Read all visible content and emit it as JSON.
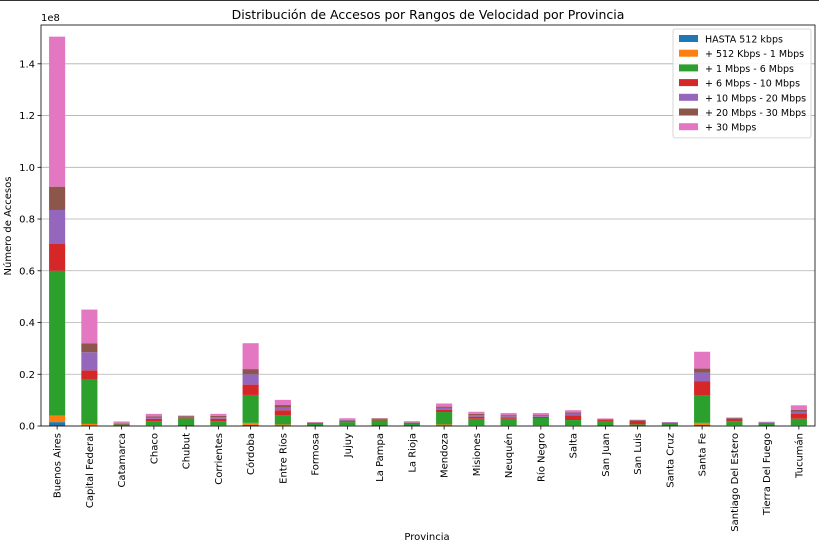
{
  "chart_data": {
    "type": "bar",
    "stacked": true,
    "title": "Distribución de Accesos por Rangos de Velocidad por Provincia",
    "xlabel": "Provincia",
    "ylabel": "Número de Accesos",
    "y_multiplier_label": "1e8",
    "ylim": [
      0,
      1.55
    ],
    "y_ticks": [
      0.0,
      0.2,
      0.4,
      0.6,
      0.8,
      1.0,
      1.2,
      1.4
    ],
    "y_tick_labels": [
      "0.0",
      "0.2",
      "0.4",
      "0.6",
      "0.8",
      "1.0",
      "1.2",
      "1.4"
    ],
    "grid": "horizontal",
    "legend_position": "top-right",
    "categories": [
      "Buenos Aires",
      "Capital Federal",
      "Catamarca",
      "Chaco",
      "Chubut",
      "Corrientes",
      "Córdoba",
      "Entre Ríos",
      "Formosa",
      "Jujuy",
      "La Pampa",
      "La Rioja",
      "Mendoza",
      "Misiones",
      "Neuquén",
      "Río Negro",
      "Salta",
      "San Juan",
      "San Luis",
      "Santa Cruz",
      "Santa Fe",
      "Santiago Del Estero",
      "Tierra Del Fuego",
      "Tucumán"
    ],
    "series": [
      {
        "name": "HASTA 512 kbps",
        "color": "#1f77b4",
        "values": [
          0.015,
          0.003,
          0.0005,
          0.001,
          0.0005,
          0.001,
          0.004,
          0.002,
          0.0005,
          0.001,
          0.0005,
          0.0005,
          0.002,
          0.001,
          0.001,
          0.001,
          0.001,
          0.0005,
          0.0005,
          0.0005,
          0.004,
          0.001,
          0.0005,
          0.001
        ]
      },
      {
        "name": "+ 512 Kbps - 1 Mbps",
        "color": "#ff7f0e",
        "values": [
          0.025,
          0.005,
          0.001,
          0.002,
          0.001,
          0.002,
          0.008,
          0.004,
          0.001,
          0.002,
          0.001,
          0.001,
          0.004,
          0.002,
          0.002,
          0.002,
          0.002,
          0.001,
          0.001,
          0.001,
          0.008,
          0.002,
          0.001,
          0.002
        ]
      },
      {
        "name": "+ 1 Mbps - 6 Mbps",
        "color": "#2ca02c",
        "values": [
          0.56,
          0.172,
          0.005,
          0.015,
          0.028,
          0.015,
          0.108,
          0.035,
          0.008,
          0.012,
          0.02,
          0.008,
          0.048,
          0.025,
          0.025,
          0.028,
          0.02,
          0.018,
          0.005,
          0.008,
          0.105,
          0.015,
          0.008,
          0.025
        ]
      },
      {
        "name": "+ 6 Mbps - 10 Mbps",
        "color": "#d62728",
        "values": [
          0.105,
          0.035,
          0.002,
          0.01,
          0.004,
          0.01,
          0.04,
          0.02,
          0.003,
          0.004,
          0.004,
          0.003,
          0.008,
          0.008,
          0.006,
          0.004,
          0.018,
          0.004,
          0.014,
          0.002,
          0.055,
          0.01,
          0.002,
          0.02
        ]
      },
      {
        "name": "+ 10 Mbps - 20 Mbps",
        "color": "#9467bd",
        "values": [
          0.13,
          0.07,
          0.002,
          0.005,
          0.002,
          0.006,
          0.04,
          0.01,
          0.001,
          0.003,
          0.002,
          0.002,
          0.008,
          0.006,
          0.004,
          0.003,
          0.006,
          0.002,
          0.001,
          0.002,
          0.035,
          0.001,
          0.002,
          0.008
        ]
      },
      {
        "name": "+ 20 Mbps - 30 Mbps",
        "color": "#8c564b",
        "values": [
          0.09,
          0.035,
          0.002,
          0.004,
          0.003,
          0.005,
          0.02,
          0.01,
          0.001,
          0.002,
          0.002,
          0.001,
          0.005,
          0.005,
          0.004,
          0.004,
          0.006,
          0.002,
          0.002,
          0.001,
          0.015,
          0.002,
          0.001,
          0.006
        ]
      },
      {
        "name": "+ 30 Mbps",
        "color": "#e377c2",
        "values": [
          0.58,
          0.13,
          0.005,
          0.01,
          0.002,
          0.008,
          0.1,
          0.02,
          0.001,
          0.006,
          0.001,
          0.003,
          0.012,
          0.008,
          0.008,
          0.008,
          0.008,
          0.002,
          0.001,
          0.001,
          0.065,
          0.002,
          0.002,
          0.018
        ]
      }
    ]
  }
}
